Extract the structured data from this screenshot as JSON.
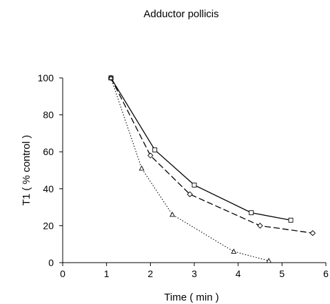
{
  "chart_data": {
    "type": "line",
    "title": "Adductor pollicis",
    "xlabel": "Time ( min )",
    "ylabel": "T1 ( % control )",
    "xlim": [
      0,
      6
    ],
    "ylim": [
      0,
      100
    ],
    "xticks": [
      0,
      1,
      2,
      3,
      4,
      5,
      6
    ],
    "yticks": [
      0,
      20,
      40,
      60,
      80,
      100
    ],
    "grid": false,
    "legend": "none",
    "series": [
      {
        "line_style": "solid",
        "marker": "square",
        "color": "#000000",
        "x": [
          1.1,
          2.1,
          3.0,
          4.3,
          5.2
        ],
        "y": [
          100,
          61,
          42,
          27,
          23
        ]
      },
      {
        "line_style": "dashed",
        "marker": "diamond",
        "color": "#000000",
        "x": [
          1.1,
          2.0,
          2.9,
          4.5,
          5.7
        ],
        "y": [
          100,
          58,
          37,
          20,
          16
        ]
      },
      {
        "line_style": "dotted",
        "marker": "triangle",
        "color": "#000000",
        "x": [
          1.1,
          1.8,
          2.5,
          3.9,
          4.7
        ],
        "y": [
          100,
          51,
          26,
          6,
          1
        ]
      }
    ]
  }
}
